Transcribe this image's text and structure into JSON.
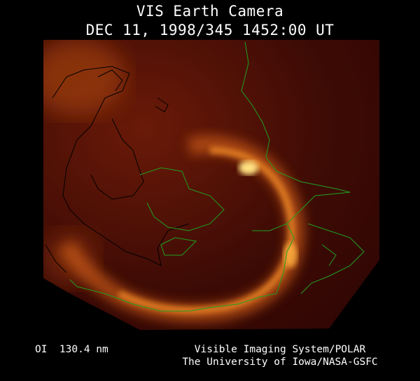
{
  "header": {
    "title": "VIS Earth Camera",
    "datetime": "DEC 11, 1998/345 1452:00 UT"
  },
  "footer": {
    "wavelength": "OI  130.4 nm",
    "credit_line1": "Visible Imaging System/POLAR",
    "credit_line2": "The University of Iowa/NASA-GSFC"
  },
  "colors": {
    "background": "#000000",
    "image_base": "#3a0805",
    "aurora_glow": "#ffb040",
    "coastline_green": "#1fa01f",
    "coastline_black": "#000000"
  }
}
